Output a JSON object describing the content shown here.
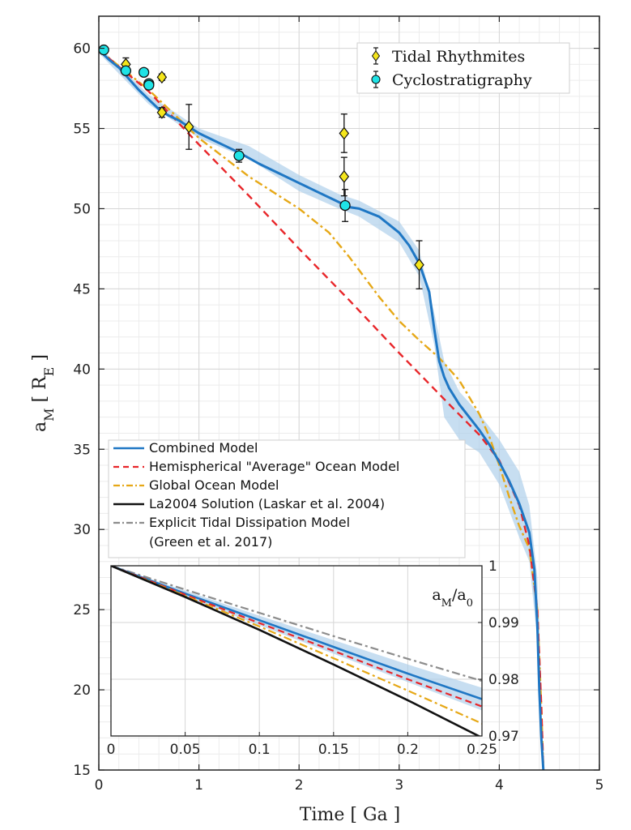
{
  "chart_data": {
    "type": "line",
    "xlabel": "Time [ Ga ]",
    "ylabel": "a_M [ R_E ]",
    "xlim": [
      0,
      5
    ],
    "ylim": [
      15,
      62
    ],
    "xticks": [
      0,
      1,
      2,
      3,
      4,
      5
    ],
    "yticks": [
      15,
      20,
      25,
      30,
      35,
      40,
      45,
      50,
      55,
      60
    ],
    "grid": true,
    "series": [
      {
        "name": "Combined Model",
        "color": "#1f77c4",
        "style": "solid",
        "x": [
          0,
          0.1,
          0.2,
          0.3,
          0.4,
          0.5,
          0.6,
          0.7,
          0.8,
          0.9,
          1.0,
          1.2,
          1.4,
          1.6,
          1.8,
          2.0,
          2.2,
          2.4,
          2.5,
          2.6,
          2.8,
          3.0,
          3.1,
          3.2,
          3.3,
          3.35,
          3.4,
          3.45,
          3.5,
          3.6,
          3.7,
          3.8,
          3.9,
          4.0,
          4.1,
          4.2,
          4.3,
          4.35,
          4.38,
          4.4,
          4.42,
          4.44
        ],
        "y": [
          59.9,
          59.3,
          58.8,
          58.1,
          57.4,
          56.8,
          56.2,
          55.8,
          55.5,
          55.1,
          54.7,
          54.1,
          53.5,
          52.8,
          52.2,
          51.6,
          51.0,
          50.4,
          50.1,
          50.0,
          49.5,
          48.5,
          47.7,
          46.6,
          44.8,
          42.5,
          40.5,
          39.5,
          38.8,
          37.8,
          37.0,
          36.2,
          35.3,
          34.2,
          33.0,
          31.6,
          29.8,
          27.5,
          24.0,
          20.0,
          17.0,
          15.0
        ]
      },
      {
        "name": "Hemispherical \"Average\" Ocean Model",
        "color": "#e8262a",
        "style": "dashed",
        "x": [
          0,
          0.5,
          1.0,
          1.5,
          2.0,
          2.5,
          3.0,
          3.5,
          3.8,
          4.0,
          4.2,
          4.3,
          4.38,
          4.42,
          4.44
        ],
        "y": [
          59.9,
          57.3,
          54.0,
          50.8,
          47.5,
          44.3,
          41.0,
          37.8,
          35.9,
          34.3,
          31.5,
          29.0,
          25.0,
          19.0,
          15.0
        ]
      },
      {
        "name": "Global Ocean Model",
        "color": "#e6a817",
        "style": "dashdot",
        "x": [
          0,
          0.5,
          1.0,
          1.5,
          2.0,
          2.3,
          2.5,
          2.8,
          3.0,
          3.2,
          3.4,
          3.6,
          3.8,
          3.9,
          4.0,
          4.1,
          4.2,
          4.3,
          4.38,
          4.42,
          4.44
        ],
        "y": [
          59.9,
          57.4,
          54.4,
          52.0,
          50.0,
          48.5,
          47.0,
          44.5,
          43.0,
          41.8,
          40.7,
          39.3,
          37.2,
          35.8,
          34.0,
          32.0,
          30.2,
          28.8,
          25.0,
          19.0,
          15.0
        ]
      },
      {
        "name": "La2004 Solution (Laskar et al. 2004)",
        "color": "#111111",
        "style": "solid",
        "x": [],
        "y": []
      },
      {
        "name": "Explicit Tidal Dissipation Model",
        "name_line2": "(Green et al. 2017)",
        "color": "#8c8c8c",
        "style": "dashdot",
        "x": [],
        "y": []
      },
      {
        "name": "Tidal Rhythmites",
        "type": "scatter",
        "marker": "diamond",
        "color": "#f5e61b",
        "x": [
          0.27,
          0.63,
          0.63,
          0.9,
          2.45,
          2.45,
          3.2
        ],
        "y": [
          59.0,
          58.2,
          56.0,
          55.1,
          54.7,
          52.0,
          46.5
        ],
        "err": [
          0.4,
          0.2,
          0.3,
          1.4,
          1.2,
          1.2,
          1.5
        ]
      },
      {
        "name": "Cyclostratigraphy",
        "type": "scatter",
        "marker": "circle",
        "color": "#1fe3e6",
        "x": [
          0.05,
          0.27,
          0.45,
          0.5,
          0.5,
          1.4,
          2.46
        ],
        "y": [
          59.9,
          58.6,
          58.5,
          57.8,
          57.7,
          53.3,
          50.2
        ],
        "err": [
          0.15,
          0.2,
          0.15,
          0.2,
          0.2,
          0.4,
          1.0
        ]
      }
    ],
    "band": {
      "x": [
        0,
        0.5,
        1.0,
        1.5,
        2.0,
        2.4,
        2.6,
        3.0,
        3.2,
        3.35,
        3.45,
        3.6,
        3.8,
        4.0,
        4.2,
        4.3,
        4.38,
        4.44
      ],
      "upper": [
        60.1,
        57.1,
        55.0,
        53.9,
        52.1,
        50.9,
        50.5,
        49.2,
        47.4,
        43.5,
        40.5,
        38.6,
        37.2,
        35.6,
        33.6,
        31.5,
        27.0,
        15.2
      ],
      "lower": [
        59.7,
        56.5,
        54.4,
        53.1,
        51.1,
        50.0,
        49.5,
        47.9,
        45.8,
        41.5,
        37.0,
        35.6,
        34.8,
        32.8,
        29.5,
        28.0,
        23.0,
        14.8
      ]
    },
    "inset": {
      "ylabel": "a_M/a_0",
      "xlim": [
        0,
        0.25
      ],
      "ylim": [
        0.97,
        1.0
      ],
      "xticks": [
        0,
        0.05,
        0.1,
        0.15,
        0.2,
        0.25
      ],
      "yticks": [
        0.97,
        0.98,
        0.99,
        1
      ],
      "series": [
        {
          "name": "Explicit Tidal Dissipation Model",
          "color": "#8c8c8c",
          "style": "dashdot",
          "x": [
            0,
            0.05,
            0.1,
            0.15,
            0.2,
            0.25
          ],
          "y": [
            1.0,
            0.9958,
            0.9917,
            0.9876,
            0.9836,
            0.9797
          ]
        },
        {
          "name": "Combined Model",
          "color": "#1f77c4",
          "style": "solid",
          "x": [
            0,
            0.05,
            0.1,
            0.15,
            0.2,
            0.25
          ],
          "y": [
            1.0,
            0.9951,
            0.9904,
            0.9857,
            0.981,
            0.9765
          ]
        },
        {
          "name": "Hemispherical \"Average\" Ocean Model",
          "color": "#e8262a",
          "style": "dashed",
          "x": [
            0,
            0.05,
            0.1,
            0.15,
            0.2,
            0.25
          ],
          "y": [
            1.0,
            0.9949,
            0.9899,
            0.985,
            0.98,
            0.9752
          ]
        },
        {
          "name": "Global Ocean Model",
          "color": "#e6a817",
          "style": "dashdot",
          "x": [
            0,
            0.05,
            0.1,
            0.15,
            0.2,
            0.25
          ],
          "y": [
            1.0,
            0.9947,
            0.9893,
            0.9837,
            0.978,
            0.9722
          ]
        },
        {
          "name": "La2004 Solution (Laskar et al. 2004)",
          "color": "#111111",
          "style": "solid",
          "x": [
            0,
            0.05,
            0.1,
            0.15,
            0.2,
            0.25
          ],
          "y": [
            1.0,
            0.9945,
            0.9887,
            0.9826,
            0.9763,
            0.9697
          ]
        }
      ],
      "band": {
        "x": [
          0,
          0.05,
          0.1,
          0.15,
          0.2,
          0.25
        ],
        "upper": [
          1.0,
          0.9956,
          0.9912,
          0.9869,
          0.9826,
          0.9785
        ],
        "lower": [
          1.0,
          0.9946,
          0.9895,
          0.9845,
          0.9795,
          0.9745
        ]
      }
    },
    "legend_top": {
      "placement": "top-right",
      "entries": [
        "Tidal Rhythmites",
        "Cyclostratigraphy"
      ]
    },
    "legend_lines": {
      "placement": "middle-left",
      "entries": [
        "Combined Model",
        "Hemispherical \"Average\" Ocean Model",
        "Global Ocean Model",
        "La2004 Solution (Laskar et al. 2004)",
        "Explicit Tidal Dissipation Model",
        "(Green et al. 2017)"
      ]
    }
  }
}
